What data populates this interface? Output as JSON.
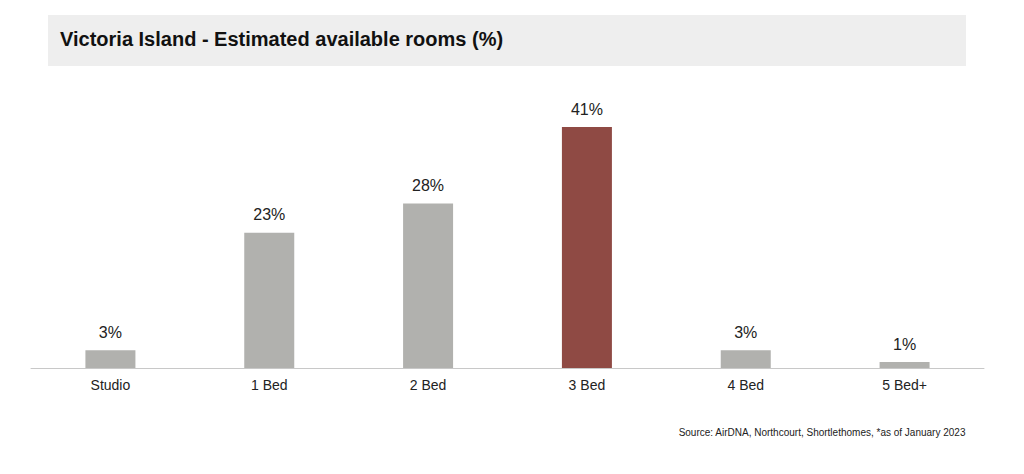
{
  "chart_data": {
    "type": "bar",
    "title": "Victoria Island - Estimated available rooms (%)",
    "source": "Source: AirDNA, Northcourt, Shortlethomes, *as of January 2023",
    "categories": [
      "Studio",
      "1 Bed",
      "2 Bed",
      "3 Bed",
      "4 Bed",
      "5 Bed+"
    ],
    "values": [
      3,
      23,
      28,
      41,
      3,
      1
    ],
    "value_labels": [
      "3%",
      "23%",
      "28%",
      "41%",
      "3%",
      "1%"
    ],
    "colors": [
      "#b1b1ae",
      "#b1b1ae",
      "#b1b1ae",
      "#8f4a44",
      "#b1b1ae",
      "#b1b1ae"
    ],
    "data_labels": true,
    "tick_labels": "x",
    "grid": false
  }
}
